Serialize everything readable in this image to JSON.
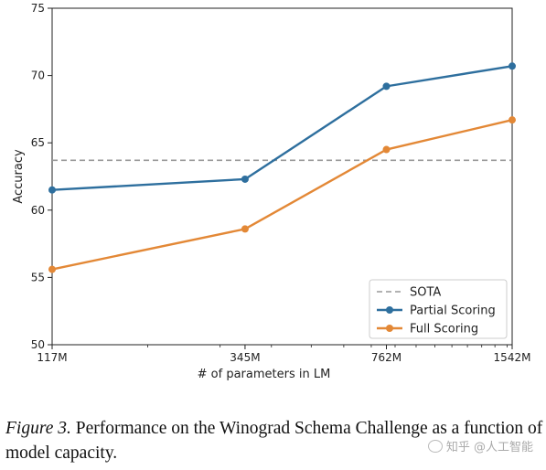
{
  "chart_data": {
    "type": "line",
    "categories": [
      "117M",
      "345M",
      "762M",
      "1542M"
    ],
    "x_positions": [
      117,
      345,
      762,
      1542
    ],
    "xscale": "log",
    "xlabel": "# of parameters in LM",
    "ylabel": "Accuracy",
    "ylim": [
      50,
      75
    ],
    "yticks": [
      50,
      55,
      60,
      65,
      70,
      75
    ],
    "grid": false,
    "legend": "bottom-right",
    "series": [
      {
        "name": "Partial Scoring",
        "color": "#2e6f9e",
        "values": [
          61.5,
          62.3,
          69.2,
          70.7
        ]
      },
      {
        "name": "Full Scoring",
        "color": "#e38836",
        "values": [
          55.6,
          58.6,
          64.5,
          66.7
        ]
      }
    ],
    "reference_lines": [
      {
        "name": "SOTA",
        "value": 63.7,
        "color": "#999999",
        "style": "dashed"
      }
    ]
  },
  "caption": {
    "lead": "Figure 3.",
    "text": " Performance on the Winograd Schema Challenge as a function of model capacity."
  },
  "watermark": {
    "text": "知乎 @人工智能"
  }
}
